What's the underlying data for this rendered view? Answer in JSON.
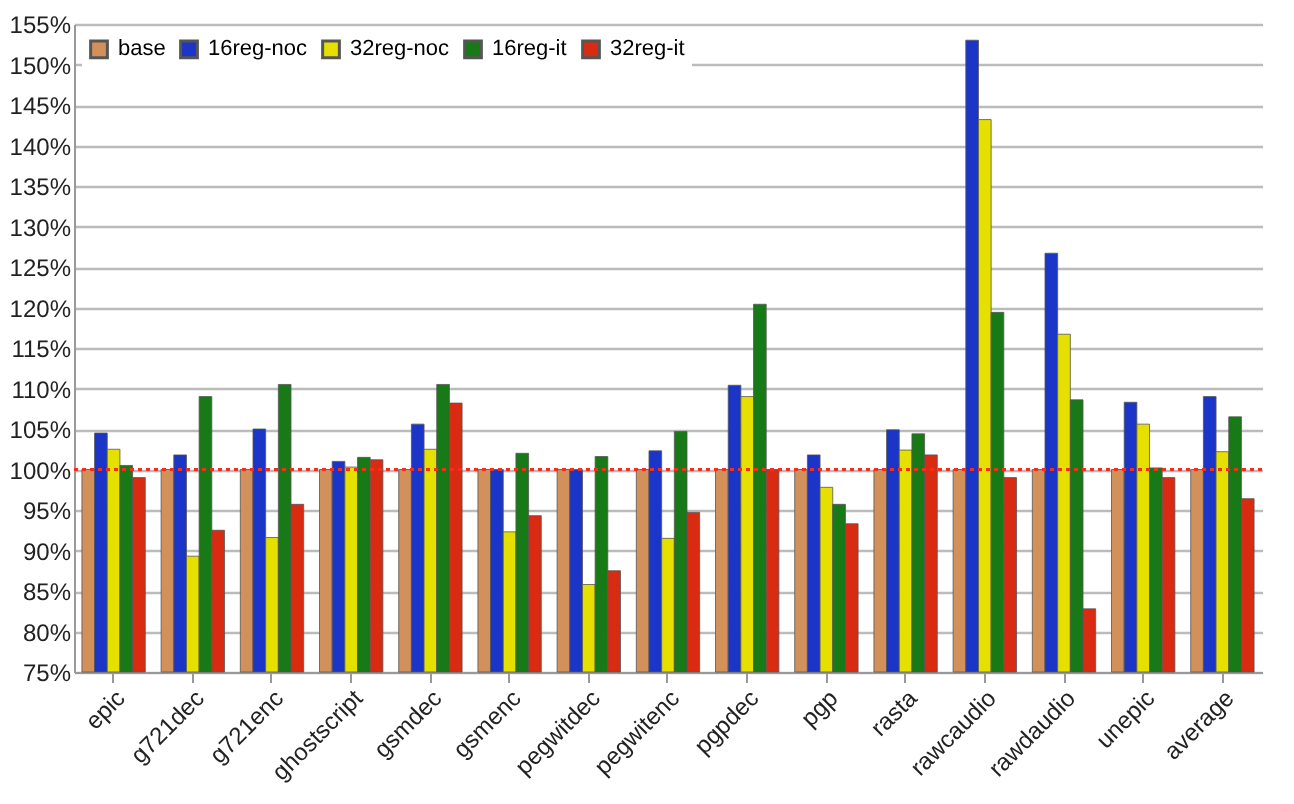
{
  "chart_data": {
    "type": "bar",
    "categories": [
      "epic",
      "g721dec",
      "g721enc",
      "ghostscript",
      "gsmdec",
      "gsmenc",
      "pegwitdec",
      "pegwitenc",
      "pgpdec",
      "pgp",
      "rasta",
      "rawcaudio",
      "rawdaudio",
      "unepic",
      "average"
    ],
    "series": [
      {
        "name": "base",
        "color": "#d2915a",
        "values": [
          100,
          100,
          100,
          100,
          100,
          100,
          100,
          100,
          100,
          100,
          100,
          100,
          100,
          100,
          100
        ]
      },
      {
        "name": "16reg-noc",
        "color": "#1a35c8",
        "values": [
          104.5,
          101.8,
          105,
          101,
          105.6,
          100,
          100,
          102.3,
          110.4,
          101.8,
          104.9,
          153,
          126.7,
          108.3,
          109
        ]
      },
      {
        "name": "32reg-noc",
        "color": "#e5e000",
        "values": [
          102.5,
          89.3,
          91.6,
          100.3,
          102.5,
          92.3,
          85.8,
          91.5,
          109,
          97.8,
          102.4,
          143.2,
          116.7,
          105.6,
          102.2
        ]
      },
      {
        "name": "16reg-it",
        "color": "#177a17",
        "values": [
          100.5,
          109,
          110.5,
          101.5,
          110.5,
          102,
          101.6,
          104.7,
          120.4,
          95.7,
          104.4,
          119.4,
          108.6,
          100.2,
          106.5
        ]
      },
      {
        "name": "32reg-it",
        "color": "#d92b12",
        "values": [
          99,
          92.5,
          95.7,
          101.2,
          108.2,
          94.3,
          87.5,
          94.7,
          100,
          93.3,
          101.8,
          99,
          82.8,
          99,
          96.4
        ]
      }
    ],
    "ylim": [
      75,
      155
    ],
    "yticks": [
      {
        "value": 75,
        "label": "75%"
      },
      {
        "value": 80,
        "label": "80%"
      },
      {
        "value": 85,
        "label": "85%"
      },
      {
        "value": 90,
        "label": "90%"
      },
      {
        "value": 95,
        "label": "95%"
      },
      {
        "value": 100,
        "label": "100%"
      },
      {
        "value": 105,
        "label": "105%"
      },
      {
        "value": 110,
        "label": "110%"
      },
      {
        "value": 115,
        "label": "115%"
      },
      {
        "value": 120,
        "label": "120%"
      },
      {
        "value": 125,
        "label": "125%"
      },
      {
        "value": 130,
        "label": "130%"
      },
      {
        "value": 135,
        "label": "135%"
      },
      {
        "value": 140,
        "label": "140%"
      },
      {
        "value": 145,
        "label": "145%"
      },
      {
        "value": 150,
        "label": "150%"
      },
      {
        "value": 155,
        "label": "155%"
      }
    ],
    "ref_lines": [
      {
        "axis": "y",
        "value": 100,
        "color": "#ff2a1a",
        "line_style": "dotted"
      }
    ],
    "grid": "y",
    "legend": "top left"
  }
}
